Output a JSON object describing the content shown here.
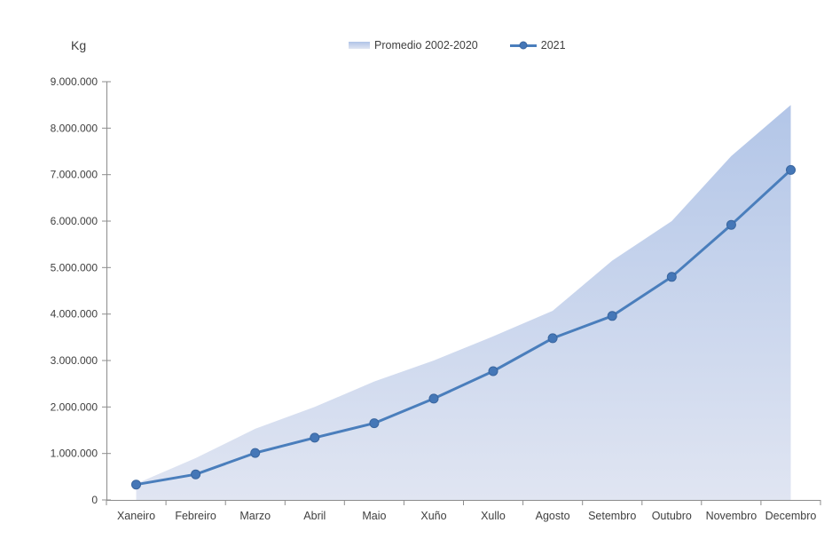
{
  "chart": {
    "unit_label": "Kg",
    "legend_items": [
      "Promedio 2002-2020",
      "2021"
    ]
  },
  "chart_data": {
    "type": "area+line",
    "title": "",
    "ylabel": "Kg",
    "xlabel": "",
    "ylim": [
      0,
      9000000
    ],
    "ytick_step": 1000000,
    "ytick_labels": [
      "0",
      "1.000.000",
      "2.000.000",
      "3.000.000",
      "4.000.000",
      "5.000.000",
      "6.000.000",
      "7.000.000",
      "8.000.000",
      "9.000.000"
    ],
    "grid": false,
    "legend_position": "top-center",
    "categories": [
      "Xaneiro",
      "Febreiro",
      "Marzo",
      "Abril",
      "Maio",
      "Xuño",
      "Xullo",
      "Agosto",
      "Setembro",
      "Outubro",
      "Novembro",
      "Decembro"
    ],
    "series": [
      {
        "name": "Promedio 2002-2020",
        "type": "area",
        "color_top": "#b0c4e7",
        "color_bottom": "#e0e5f2",
        "values": [
          350000,
          900000,
          1530000,
          2000000,
          2550000,
          3000000,
          3520000,
          4070000,
          5150000,
          6000000,
          7400000,
          8500000
        ]
      },
      {
        "name": "2021",
        "type": "line",
        "color": "#4a7ebc",
        "marker_color": "#4577b7",
        "values": [
          330000,
          550000,
          1010000,
          1340000,
          1650000,
          2180000,
          2770000,
          3480000,
          3960000,
          4800000,
          5920000,
          7100000
        ]
      }
    ],
    "axis_color": "#8c8c8c",
    "label_color": "#3f3f3f"
  }
}
